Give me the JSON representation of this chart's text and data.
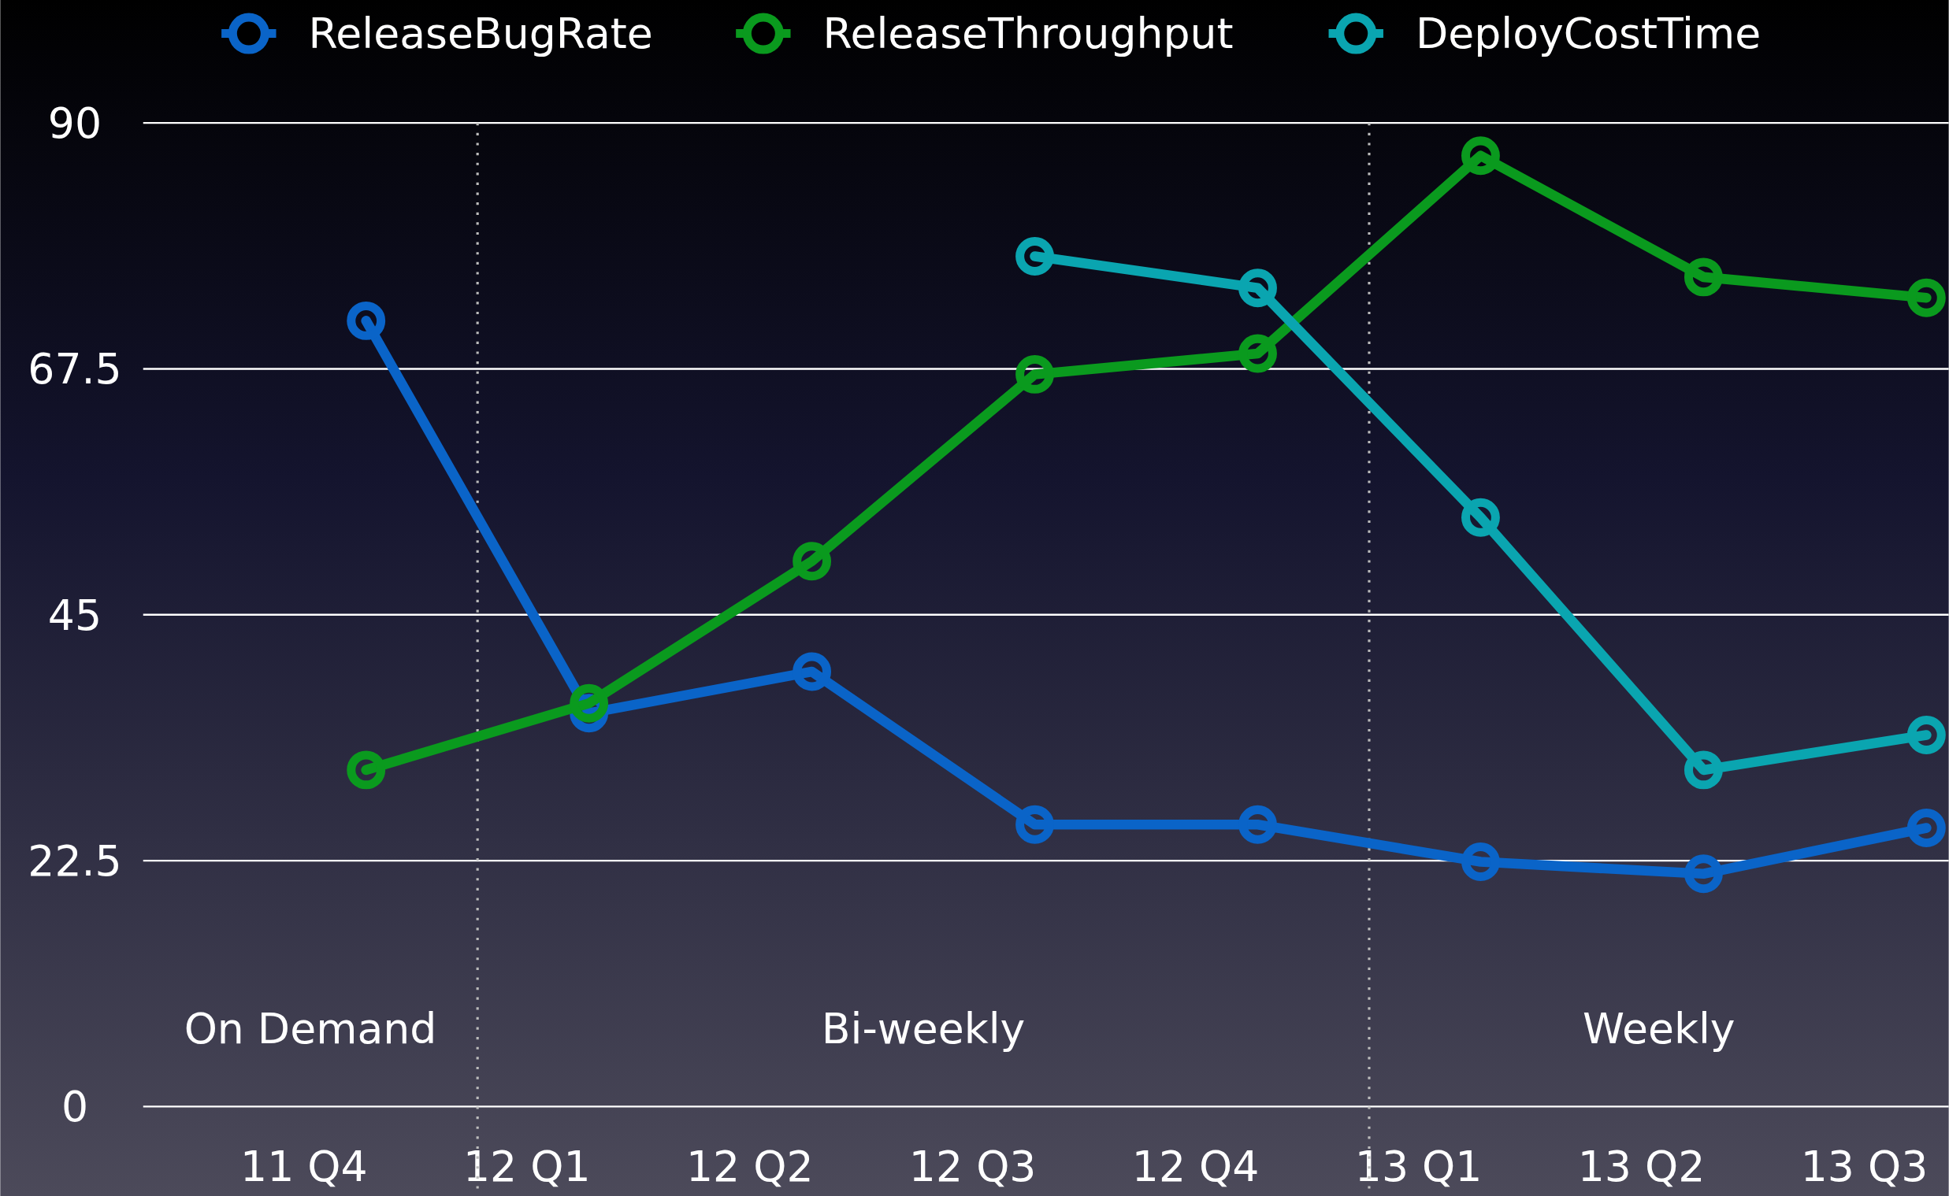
{
  "chart_data": {
    "type": "line",
    "categories": [
      "11 Q4",
      "12 Q1",
      "12 Q2",
      "12 Q3",
      "12 Q4",
      "13 Q1",
      "13 Q2",
      "13 Q3"
    ],
    "series": [
      {
        "name": "ReleaseBugRate",
        "color": "#0a64c8",
        "values": [
          71.9,
          36.0,
          39.8,
          25.8,
          25.8,
          22.4,
          21.3,
          25.5
        ]
      },
      {
        "name": "ReleaseThroughput",
        "color": "#0a9a1e",
        "values": [
          30.8,
          36.9,
          49.9,
          67.0,
          68.9,
          87.0,
          75.9,
          74.0
        ]
      },
      {
        "name": "DeployCostTime",
        "color": "#0aa5b0",
        "values": [
          null,
          null,
          null,
          77.8,
          74.9,
          53.9,
          30.8,
          34.0
        ]
      }
    ],
    "ylim": [
      0,
      90
    ],
    "yticks": [
      0,
      22.5,
      45,
      67.5,
      90
    ],
    "grid": "y",
    "legend": "top",
    "marker": "circle",
    "line_style": "solid",
    "ref_lines": [
      {
        "axis": "x",
        "value": "12 Q1",
        "line_style": "dotted",
        "color": "#bbbbbb"
      },
      {
        "axis": "x",
        "value": "13 Q1",
        "line_style": "dotted",
        "color": "#bbbbbb"
      }
    ],
    "annotations": [
      "On Demand",
      "Bi-weekly",
      "Weekly"
    ]
  }
}
